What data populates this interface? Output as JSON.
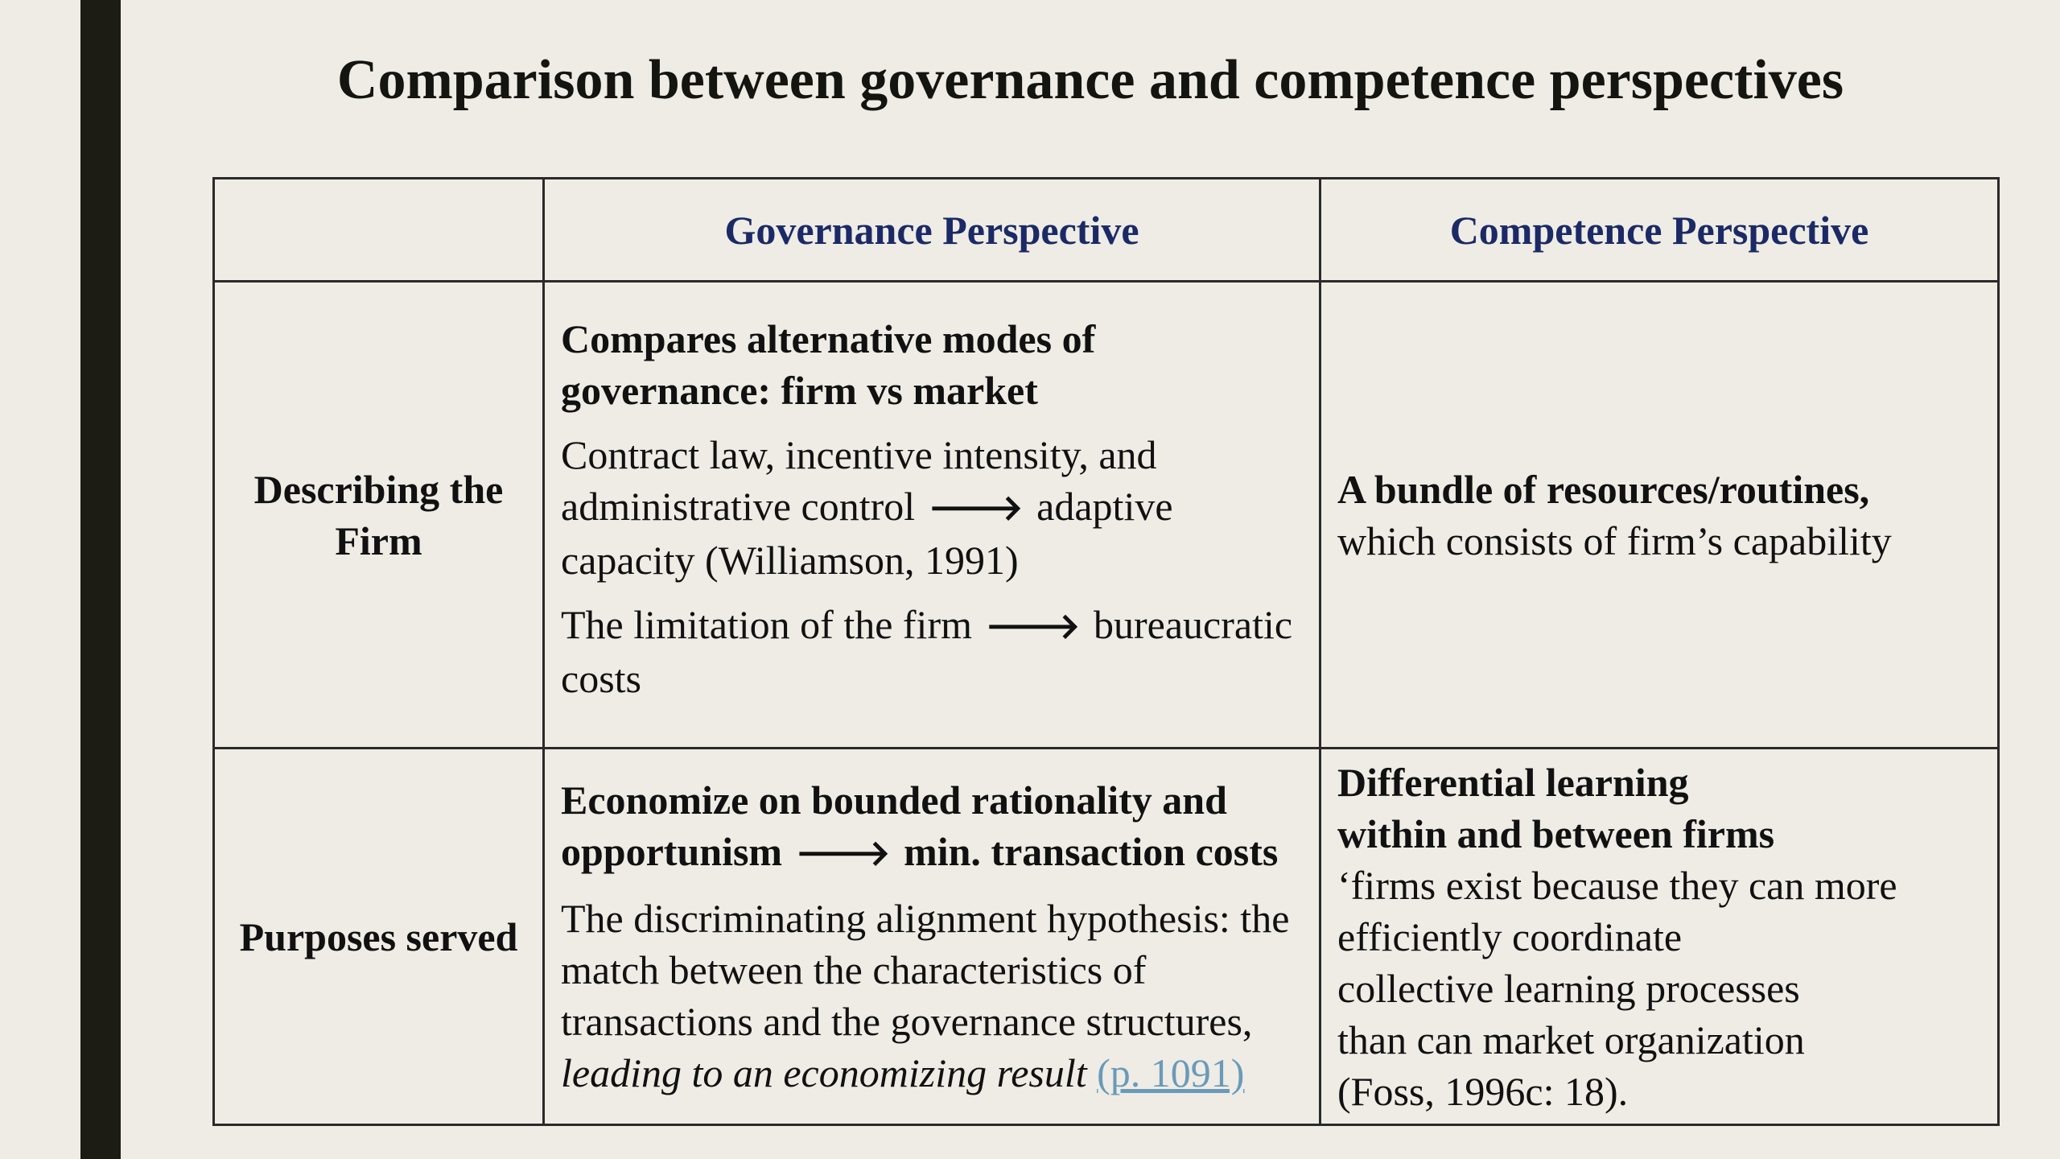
{
  "slide": {
    "title": "Comparison between governance and competence perspectives"
  },
  "table": {
    "headers": {
      "label": "",
      "governance": "Governance Perspective",
      "competence": "Competence Perspective"
    },
    "rows": {
      "describing": {
        "label": "Describing the Firm",
        "governance": {
          "heading": "Compares alternative modes of governance: firm vs market",
          "para1_part1": "Contract law, incentive intensity, and administrative control",
          "para1_arrow": "🡒",
          "para1_part2": "adaptive capacity (Williamson, 1991)",
          "para2_part1": "The limitation of the firm",
          "para2_arrow": "🡒",
          "para2_part2": "bureaucratic costs"
        },
        "competence": {
          "heading": "A bundle of resources/routines,",
          "text": "which consists of firm’s capability"
        }
      },
      "purposes": {
        "label": "Purposes served",
        "governance": {
          "heading_part1": "Economize on bounded rationality and opportunism",
          "heading_arrow": "🡒",
          "heading_part2": "min. transaction costs",
          "text": "The discriminating alignment hypothesis: the match between the characteristics of transactions and the governance structures,",
          "italic": "leading to an economizing result",
          "link": "(p. 1091)"
        },
        "competence": {
          "heading_line1": "Differential learning",
          "heading_line2": "within and between firms",
          "line1": "‘firms exist because they can more",
          "line2": "efficiently coordinate",
          "line3": "collective learning processes",
          "line4": "than can market organization",
          "line5": "(Foss, 1996c: 18)."
        }
      }
    }
  }
}
